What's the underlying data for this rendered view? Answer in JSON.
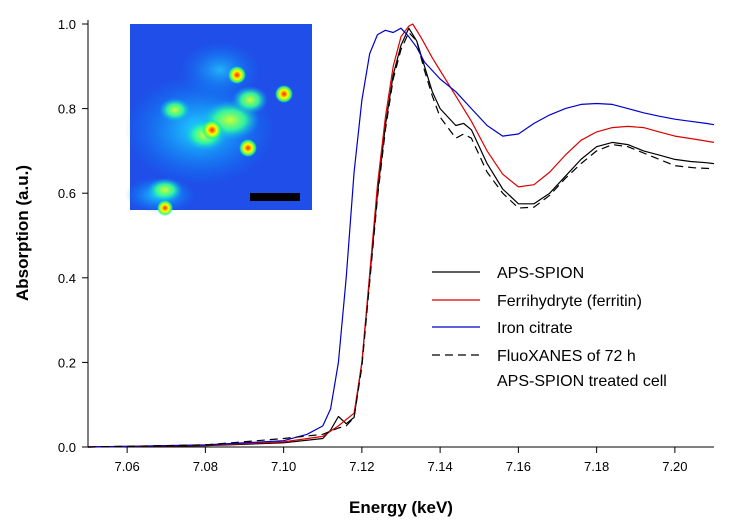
{
  "chart_data": {
    "type": "line",
    "xlabel": "Energy (keV)",
    "ylabel": "Absorption (a.u.)",
    "xlim": [
      7.05,
      7.21
    ],
    "ylim": [
      0.0,
      1.0
    ],
    "xticks": [
      "7.06",
      "7.08",
      "7.10",
      "7.12",
      "7.14",
      "7.16",
      "7.18",
      "7.20"
    ],
    "yticks": [
      "0.0",
      "0.2",
      "0.4",
      "0.6",
      "0.8",
      "1.0"
    ],
    "grid": false,
    "legend_placement": "lower-right",
    "legend": [
      {
        "name": "APS-SPION",
        "color": "#000000",
        "dash": "solid"
      },
      {
        "name": "Ferrihydryte (ferritin)",
        "color": "#dd0000",
        "dash": "solid"
      },
      {
        "name": "Iron citrate",
        "color": "#0000cc",
        "dash": "solid"
      },
      {
        "name": "FluoXANES of 72 h",
        "name_line2": "APS-SPION treated cell",
        "color": "#000000",
        "dash": "dashed"
      }
    ],
    "series": [
      {
        "name": "APS-SPION",
        "color": "#000000",
        "dash": "solid",
        "x": [
          7.05,
          7.08,
          7.1,
          7.11,
          7.112,
          7.114,
          7.116,
          7.118,
          7.12,
          7.122,
          7.124,
          7.126,
          7.128,
          7.13,
          7.132,
          7.134,
          7.136,
          7.138,
          7.14,
          7.144,
          7.146,
          7.148,
          7.152,
          7.156,
          7.16,
          7.164,
          7.168,
          7.172,
          7.176,
          7.18,
          7.184,
          7.188,
          7.192,
          7.196,
          7.2,
          7.204,
          7.208,
          7.21
        ],
        "y": [
          0.0,
          0.003,
          0.01,
          0.02,
          0.04,
          0.072,
          0.055,
          0.07,
          0.2,
          0.4,
          0.6,
          0.76,
          0.88,
          0.95,
          0.99,
          0.96,
          0.9,
          0.84,
          0.8,
          0.76,
          0.765,
          0.75,
          0.67,
          0.61,
          0.575,
          0.575,
          0.6,
          0.64,
          0.68,
          0.71,
          0.72,
          0.715,
          0.7,
          0.69,
          0.68,
          0.675,
          0.672,
          0.67
        ]
      },
      {
        "name": "Ferrihydryte (ferritin)",
        "color": "#dd0000",
        "dash": "solid",
        "x": [
          7.05,
          7.08,
          7.1,
          7.11,
          7.114,
          7.118,
          7.12,
          7.122,
          7.124,
          7.126,
          7.128,
          7.13,
          7.132,
          7.133,
          7.135,
          7.138,
          7.14,
          7.144,
          7.148,
          7.152,
          7.156,
          7.16,
          7.164,
          7.168,
          7.172,
          7.176,
          7.18,
          7.184,
          7.188,
          7.192,
          7.196,
          7.2,
          7.205,
          7.21
        ],
        "y": [
          0.0,
          0.004,
          0.012,
          0.025,
          0.05,
          0.08,
          0.2,
          0.41,
          0.62,
          0.78,
          0.9,
          0.97,
          0.995,
          1.0,
          0.97,
          0.92,
          0.89,
          0.83,
          0.77,
          0.7,
          0.645,
          0.615,
          0.62,
          0.65,
          0.69,
          0.725,
          0.745,
          0.755,
          0.758,
          0.755,
          0.745,
          0.735,
          0.728,
          0.72
        ]
      },
      {
        "name": "Iron citrate",
        "color": "#0000cc",
        "dash": "solid",
        "x": [
          7.05,
          7.08,
          7.1,
          7.106,
          7.11,
          7.112,
          7.114,
          7.116,
          7.118,
          7.12,
          7.122,
          7.124,
          7.126,
          7.128,
          7.13,
          7.132,
          7.134,
          7.136,
          7.138,
          7.14,
          7.144,
          7.148,
          7.152,
          7.156,
          7.16,
          7.164,
          7.168,
          7.172,
          7.176,
          7.18,
          7.184,
          7.188,
          7.192,
          7.196,
          7.2,
          7.204,
          7.208,
          7.21
        ],
        "y": [
          0.0,
          0.005,
          0.015,
          0.03,
          0.05,
          0.09,
          0.2,
          0.4,
          0.65,
          0.82,
          0.93,
          0.975,
          0.985,
          0.98,
          0.99,
          0.97,
          0.945,
          0.91,
          0.89,
          0.87,
          0.84,
          0.8,
          0.76,
          0.735,
          0.74,
          0.765,
          0.785,
          0.8,
          0.81,
          0.812,
          0.81,
          0.8,
          0.79,
          0.782,
          0.775,
          0.77,
          0.765,
          0.762
        ]
      },
      {
        "name": "FluoXANES of 72 h APS-SPION treated cell",
        "color": "#000000",
        "dash": "dashed",
        "x": [
          7.05,
          7.08,
          7.1,
          7.11,
          7.114,
          7.116,
          7.118,
          7.12,
          7.122,
          7.124,
          7.126,
          7.128,
          7.13,
          7.132,
          7.134,
          7.136,
          7.138,
          7.14,
          7.144,
          7.146,
          7.148,
          7.152,
          7.156,
          7.16,
          7.164,
          7.168,
          7.172,
          7.176,
          7.18,
          7.184,
          7.188,
          7.192,
          7.196,
          7.2,
          7.205,
          7.21
        ],
        "y": [
          0.0,
          0.005,
          0.02,
          0.03,
          0.045,
          0.05,
          0.07,
          0.19,
          0.39,
          0.59,
          0.75,
          0.87,
          0.94,
          0.98,
          0.96,
          0.89,
          0.83,
          0.78,
          0.73,
          0.74,
          0.73,
          0.65,
          0.6,
          0.565,
          0.567,
          0.595,
          0.635,
          0.67,
          0.7,
          0.715,
          0.71,
          0.695,
          0.68,
          0.665,
          0.66,
          0.658
        ]
      }
    ]
  }
}
